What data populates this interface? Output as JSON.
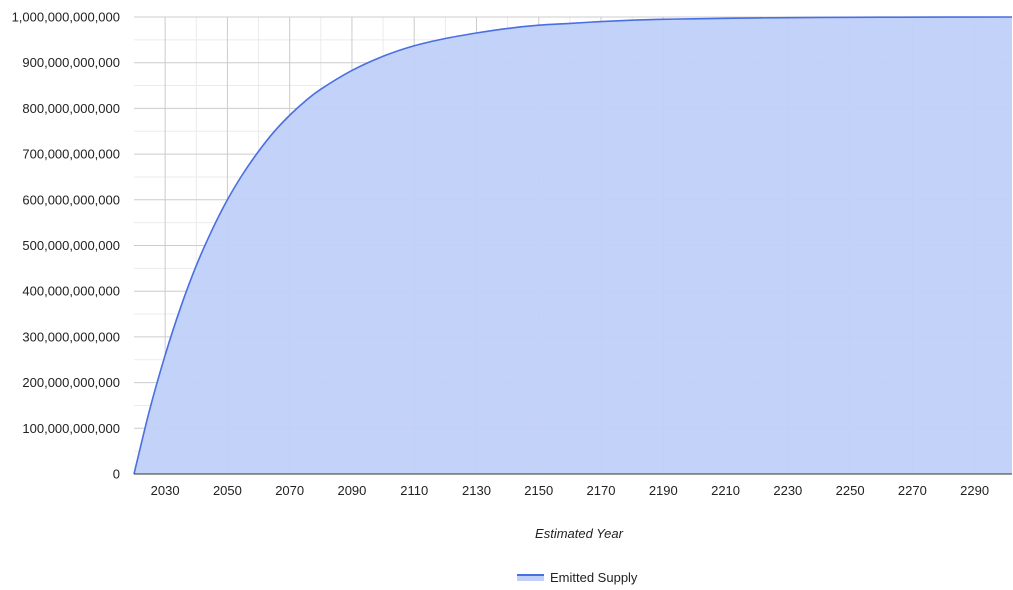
{
  "chart_data": {
    "type": "area",
    "title": "",
    "xlabel": "Estimated Year",
    "ylabel": "",
    "xlim": [
      2020,
      2302
    ],
    "ylim": [
      0,
      1000000000000
    ],
    "x_ticks": [
      "2030",
      "2050",
      "2070",
      "2090",
      "2110",
      "2130",
      "2150",
      "2170",
      "2190",
      "2210",
      "2230",
      "2250",
      "2270",
      "2290"
    ],
    "y_ticks": [
      "0",
      "100,000,000,000",
      "200,000,000,000",
      "300,000,000,000",
      "400,000,000,000",
      "500,000,000,000",
      "600,000,000,000",
      "700,000,000,000",
      "800,000,000,000",
      "900,000,000,000",
      "1,000,000,000,000"
    ],
    "grid": true,
    "legend_position": "bottom",
    "series": [
      {
        "name": "Emitted Supply",
        "color": "#4a6fe0",
        "fill": "#c0d0f8",
        "x": [
          2020,
          2025,
          2030,
          2035,
          2040,
          2045,
          2050,
          2055,
          2060,
          2065,
          2070,
          2075,
          2080,
          2090,
          2100,
          2110,
          2120,
          2130,
          2140,
          2150,
          2160,
          2170,
          2180,
          2190,
          2200,
          2220,
          2240,
          2260,
          2280,
          2302
        ],
        "values": [
          0,
          140000000000,
          260000000000,
          365000000000,
          456000000000,
          533000000000,
          600000000000,
          657000000000,
          706000000000,
          749000000000,
          785000000000,
          816000000000,
          842000000000,
          883000000000,
          914000000000,
          937000000000,
          953000000000,
          965000000000,
          975000000000,
          982000000000,
          986000000000,
          990000000000,
          993000000000,
          995000000000,
          996000000000,
          998000000000,
          999000000000,
          999500000000,
          999800000000,
          1000000000000
        ]
      }
    ]
  }
}
